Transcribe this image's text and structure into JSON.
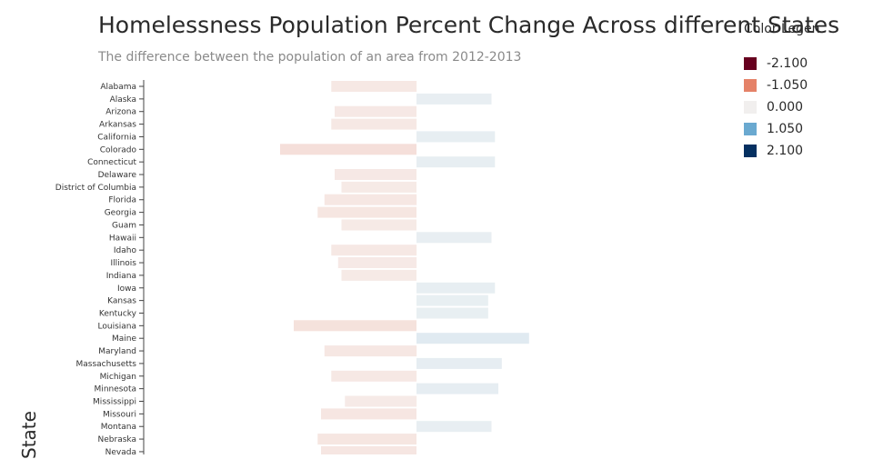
{
  "chart_data": {
    "type": "bar",
    "orientation": "horizontal",
    "title": "Homelessness Population Percent Change Across different States",
    "subtitle": "The difference between the population of an area from 2012-2013",
    "xlabel": "",
    "ylabel": "State",
    "xlim": [
      -0.8,
      0.8
    ],
    "grid": false,
    "legend_position": "top-right",
    "legend": {
      "title": "Color Legen",
      "items": [
        {
          "label": "-2.100",
          "color": "#67001f"
        },
        {
          "label": "-1.050",
          "color": "#e58268"
        },
        {
          "label": "0.000",
          "color": "#f1efee"
        },
        {
          "label": "1.050",
          "color": "#6aa9d0"
        },
        {
          "label": "2.100",
          "color": "#053061"
        }
      ]
    },
    "categories": [
      "Alabama",
      "Alaska",
      "Arizona",
      "Arkansas",
      "California",
      "Colorado",
      "Connecticut",
      "Delaware",
      "District of Columbia",
      "Florida",
      "Georgia",
      "Guam",
      "Hawaii",
      "Idaho",
      "Illinois",
      "Indiana",
      "Iowa",
      "Kansas",
      "Kentucky",
      "Louisiana",
      "Maine",
      "Maryland",
      "Massachusetts",
      "Michigan",
      "Minnesota",
      "Mississippi",
      "Missouri",
      "Montana",
      "Nebraska",
      "Nevada"
    ],
    "values": [
      -0.25,
      0.22,
      -0.24,
      -0.25,
      0.23,
      -0.4,
      0.23,
      -0.24,
      -0.22,
      -0.27,
      -0.29,
      -0.22,
      0.22,
      -0.25,
      -0.23,
      -0.22,
      0.23,
      0.21,
      0.21,
      -0.36,
      0.33,
      -0.27,
      0.25,
      -0.25,
      0.24,
      -0.21,
      -0.28,
      0.22,
      -0.29,
      -0.28
    ]
  }
}
